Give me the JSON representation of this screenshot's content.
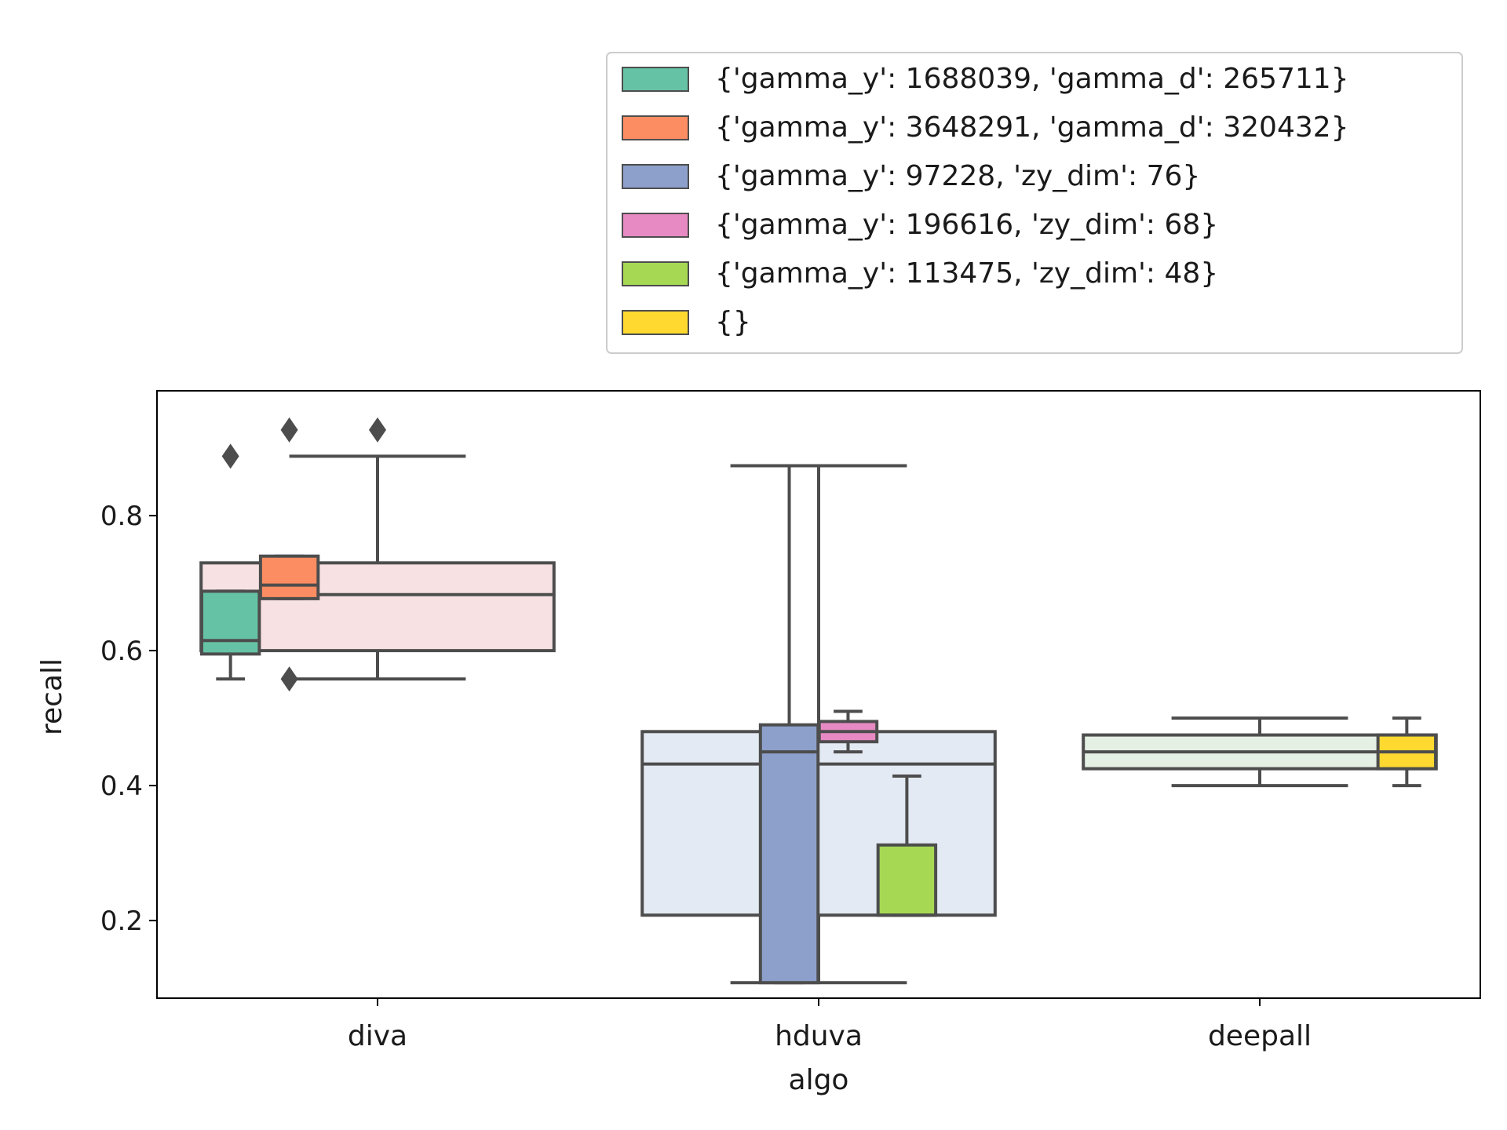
{
  "chart_data": {
    "type": "box",
    "xlabel": "algo",
    "ylabel": "recall",
    "categories": [
      "diva",
      "hduva",
      "deepall"
    ],
    "ylim": [
      0.085,
      0.985
    ],
    "yticks": [
      "0.2",
      "0.4",
      "0.6",
      "0.8"
    ],
    "grid": false,
    "legend_position": "above-right",
    "colors": {
      "edge": "#4d4d4d",
      "series": [
        "#66c2a5",
        "#fc8d62",
        "#8da0cb",
        "#e78ac3",
        "#a6d854",
        "#ffd92f"
      ],
      "aggregate": [
        "#f7e1e2",
        "#e3eaf3",
        "#e4f0e3"
      ]
    },
    "aggregate_boxes": [
      {
        "category": "diva",
        "q1": 0.6,
        "median": 0.683,
        "q3": 0.73,
        "whisker_low": 0.558,
        "whisker_high": 0.888,
        "outliers": [
          0.927
        ]
      },
      {
        "category": "hduva",
        "q1": 0.208,
        "median": 0.432,
        "q3": 0.48,
        "whisker_low": 0.108,
        "whisker_high": 0.874,
        "outliers": []
      },
      {
        "category": "deepall",
        "q1": 0.425,
        "median": 0.45,
        "q3": 0.475,
        "whisker_low": 0.4,
        "whisker_high": 0.5,
        "outliers": []
      }
    ],
    "series": [
      {
        "name": "{'gamma_y': 1688039, 'gamma_d': 265711}",
        "boxes": [
          {
            "category": "diva",
            "q1": 0.595,
            "median": 0.615,
            "q3": 0.688,
            "whisker_low": 0.558,
            "whisker_high": 0.688,
            "outliers": [
              0.888
            ]
          }
        ]
      },
      {
        "name": "{'gamma_y': 3648291, 'gamma_d': 320432}",
        "boxes": [
          {
            "category": "diva",
            "q1": 0.677,
            "median": 0.697,
            "q3": 0.74,
            "whisker_low": 0.677,
            "whisker_high": 0.74,
            "outliers": [
              0.927,
              0.558
            ]
          }
        ]
      },
      {
        "name": "{'gamma_y': 97228, 'zy_dim': 76}",
        "boxes": [
          {
            "category": "hduva",
            "q1": 0.108,
            "median": 0.45,
            "q3": 0.49,
            "whisker_low": 0.108,
            "whisker_high": 0.874,
            "outliers": []
          }
        ]
      },
      {
        "name": "{'gamma_y': 196616, 'zy_dim': 68}",
        "boxes": [
          {
            "category": "hduva",
            "q1": 0.465,
            "median": 0.48,
            "q3": 0.495,
            "whisker_low": 0.45,
            "whisker_high": 0.51,
            "outliers": []
          }
        ]
      },
      {
        "name": "{'gamma_y': 113475, 'zy_dim': 48}",
        "boxes": [
          {
            "category": "hduva",
            "q1": 0.208,
            "median": 0.208,
            "q3": 0.312,
            "whisker_low": 0.208,
            "whisker_high": 0.414,
            "outliers": []
          }
        ]
      },
      {
        "name": "{}",
        "boxes": [
          {
            "category": "deepall",
            "q1": 0.425,
            "median": 0.45,
            "q3": 0.475,
            "whisker_low": 0.4,
            "whisker_high": 0.5,
            "outliers": []
          }
        ]
      }
    ]
  }
}
